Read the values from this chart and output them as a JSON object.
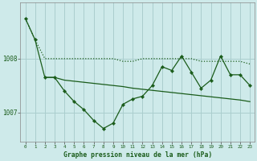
{
  "title": "Graphe pression niveau de la mer (hPa)",
  "background_color": "#ceeaea",
  "line_color": "#1a5c1a",
  "grid_color": "#aacece",
  "xlim": [
    -0.5,
    23.5
  ],
  "ylim": [
    1006.45,
    1009.05
  ],
  "xticks": [
    0,
    1,
    2,
    3,
    4,
    5,
    6,
    7,
    8,
    9,
    10,
    11,
    12,
    13,
    14,
    15,
    16,
    17,
    18,
    19,
    20,
    21,
    22,
    23
  ],
  "yticks": [
    1007,
    1008
  ],
  "line_dotted_x": [
    0,
    1,
    2,
    3,
    4,
    5,
    6,
    7,
    8,
    9,
    10,
    11,
    12,
    13,
    14,
    15,
    16,
    17,
    18,
    19,
    20,
    21,
    22,
    23
  ],
  "line_dotted_y": [
    1008.75,
    1008.35,
    1008.0,
    1008.0,
    1008.0,
    1008.0,
    1008.0,
    1008.0,
    1008.0,
    1008.0,
    1007.95,
    1007.95,
    1008.0,
    1008.0,
    1008.0,
    1008.0,
    1008.0,
    1008.0,
    1007.95,
    1007.95,
    1007.95,
    1007.95,
    1007.95,
    1007.9
  ],
  "line_zigzag_x": [
    0,
    1,
    2,
    3,
    4,
    5,
    6,
    7,
    8,
    9,
    10,
    11,
    12,
    13,
    14,
    15,
    16,
    17,
    18,
    19,
    20,
    21,
    22,
    23
  ],
  "line_zigzag_y": [
    1008.75,
    1008.35,
    1007.65,
    1007.65,
    1007.4,
    1007.2,
    1007.05,
    1006.85,
    1006.7,
    1006.8,
    1007.15,
    1007.25,
    1007.3,
    1007.5,
    1007.85,
    1007.78,
    1008.05,
    1007.75,
    1007.45,
    1007.6,
    1008.05,
    1007.7,
    1007.7,
    1007.5
  ],
  "line_flat_x": [
    2,
    3,
    4,
    5,
    6,
    7,
    8,
    9,
    10,
    11,
    12,
    13,
    14,
    15,
    16,
    17,
    18,
    19,
    20,
    21,
    22,
    23
  ],
  "line_flat_y": [
    1007.65,
    1007.65,
    1007.6,
    1007.58,
    1007.56,
    1007.54,
    1007.52,
    1007.5,
    1007.48,
    1007.45,
    1007.43,
    1007.41,
    1007.39,
    1007.37,
    1007.35,
    1007.33,
    1007.31,
    1007.29,
    1007.27,
    1007.25,
    1007.23,
    1007.2
  ]
}
